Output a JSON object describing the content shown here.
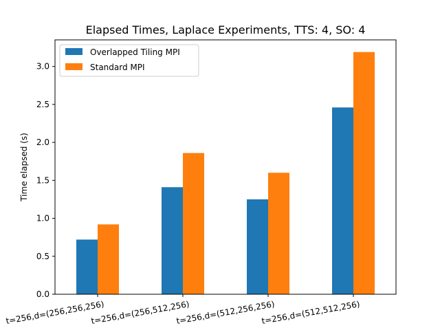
{
  "chart_data": {
    "type": "bar",
    "title": "Elapsed Times, Laplace Experiments, TTS: 4, SO: 4",
    "xlabel": "",
    "ylabel": "Time elapsed (s)",
    "categories": [
      "t=256,d=(256,256,256)",
      "t=256,d=(256,512,256)",
      "t=256,d=(512,256,256)",
      "t=256,d=(512,512,256)"
    ],
    "series": [
      {
        "name": "Overlapped Tiling MPI",
        "color": "#1f77b4",
        "values": [
          0.72,
          1.41,
          1.25,
          2.46
        ]
      },
      {
        "name": "Standard MPI",
        "color": "#ff7f0e",
        "values": [
          0.92,
          1.86,
          1.6,
          3.19
        ]
      }
    ],
    "ylim": [
      0,
      3.35
    ],
    "yticks": [
      "0.0",
      "0.5",
      "1.0",
      "1.5",
      "2.0",
      "2.5",
      "3.0"
    ],
    "legend_position": "top-left",
    "grid": false
  }
}
